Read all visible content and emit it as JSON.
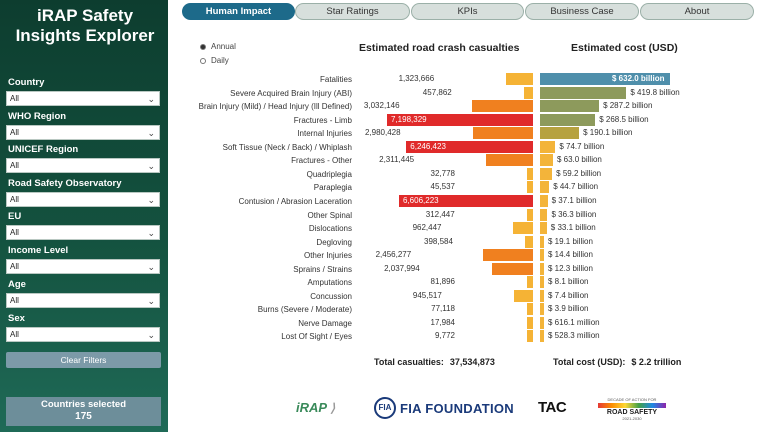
{
  "app": {
    "title": "iRAP Safety Insights Explorer"
  },
  "tabs": [
    {
      "label": "Human Impact",
      "active": true
    },
    {
      "label": "Star Ratings",
      "active": false
    },
    {
      "label": "KPIs",
      "active": false
    },
    {
      "label": "Business Case",
      "active": false
    },
    {
      "label": "About",
      "active": false
    }
  ],
  "filters": [
    {
      "label": "Country",
      "value": "All"
    },
    {
      "label": "WHO Region",
      "value": "All"
    },
    {
      "label": "UNICEF Region",
      "value": "All"
    },
    {
      "label": "Road Safety Observatory",
      "value": "All"
    },
    {
      "label": "EU",
      "value": "All"
    },
    {
      "label": "Income Level",
      "value": "All"
    },
    {
      "label": "Age",
      "value": "All"
    },
    {
      "label": "Sex",
      "value": "All"
    }
  ],
  "clear_filters_label": "Clear Filters",
  "countries_selected": {
    "label": "Countries selected",
    "value": "175"
  },
  "period_options": [
    {
      "label": "Annual",
      "selected": true
    },
    {
      "label": "Daily",
      "selected": false
    }
  ],
  "headers": {
    "casualties": "Estimated road crash casualties",
    "cost": "Estimated cost (USD)"
  },
  "rows": [
    {
      "injury": "Fatalities",
      "casualties": 1323666,
      "casualties_label": "1,323,666",
      "cost": 632.0,
      "cost_label": "$ 632.0 billion"
    },
    {
      "injury": "Severe Acquired Brain Injury (ABI)",
      "casualties": 457862,
      "casualties_label": "457,862",
      "cost": 419.8,
      "cost_label": "$ 419.8 billion"
    },
    {
      "injury": "Brain Injury (Mild) / Head Injury (Ill Defined)",
      "casualties": 3032146,
      "casualties_label": "3,032,146",
      "cost": 287.2,
      "cost_label": "$ 287.2 billion"
    },
    {
      "injury": "Fractures - Limb",
      "casualties": 7198329,
      "casualties_label": "7,198,329",
      "cost": 268.5,
      "cost_label": "$ 268.5 billion"
    },
    {
      "injury": "Internal Injuries",
      "casualties": 2980428,
      "casualties_label": "2,980,428",
      "cost": 190.1,
      "cost_label": "$ 190.1 billion"
    },
    {
      "injury": "Soft Tissue (Neck / Back) / Whiplash",
      "casualties": 6246423,
      "casualties_label": "6,246,423",
      "cost": 74.7,
      "cost_label": "$ 74.7 billion"
    },
    {
      "injury": "Fractures - Other",
      "casualties": 2311445,
      "casualties_label": "2,311,445",
      "cost": 63.0,
      "cost_label": "$ 63.0 billion"
    },
    {
      "injury": "Quadriplegia",
      "casualties": 32778,
      "casualties_label": "32,778",
      "cost": 59.2,
      "cost_label": "$ 59.2 billion"
    },
    {
      "injury": "Paraplegia",
      "casualties": 45537,
      "casualties_label": "45,537",
      "cost": 44.7,
      "cost_label": "$ 44.7 billion"
    },
    {
      "injury": "Contusion / Abrasion Laceration",
      "casualties": 6606223,
      "casualties_label": "6,606,223",
      "cost": 37.1,
      "cost_label": "$ 37.1 billion"
    },
    {
      "injury": "Other Spinal",
      "casualties": 312447,
      "casualties_label": "312,447",
      "cost": 36.3,
      "cost_label": "$ 36.3 billion"
    },
    {
      "injury": "Dislocations",
      "casualties": 962447,
      "casualties_label": "962,447",
      "cost": 33.1,
      "cost_label": "$ 33.1 billion"
    },
    {
      "injury": "Degloving",
      "casualties": 398584,
      "casualties_label": "398,584",
      "cost": 19.1,
      "cost_label": "$ 19.1 billion"
    },
    {
      "injury": "Other Injuries",
      "casualties": 2456277,
      "casualties_label": "2,456,277",
      "cost": 14.4,
      "cost_label": "$ 14.4 billion"
    },
    {
      "injury": "Sprains / Strains",
      "casualties": 2037994,
      "casualties_label": "2,037,994",
      "cost": 12.3,
      "cost_label": "$ 12.3 billion"
    },
    {
      "injury": "Amputations",
      "casualties": 81896,
      "casualties_label": "81,896",
      "cost": 8.1,
      "cost_label": "$ 8.1 billion"
    },
    {
      "injury": "Concussion",
      "casualties": 945517,
      "casualties_label": "945,517",
      "cost": 7.4,
      "cost_label": "$ 7.4 billion"
    },
    {
      "injury": "Burns (Severe / Moderate)",
      "casualties": 77118,
      "casualties_label": "77,118",
      "cost": 3.9,
      "cost_label": "$ 3.9 billion"
    },
    {
      "injury": "Nerve Damage",
      "casualties": 17984,
      "casualties_label": "17,984",
      "cost": 0.616,
      "cost_label": "$ 616.1 million"
    },
    {
      "injury": "Lost Of Sight / Eyes",
      "casualties": 9772,
      "casualties_label": "9,772",
      "cost": 0.528,
      "cost_label": "$ 528.3 million"
    }
  ],
  "totals": {
    "casualties_label": "Total casualties:",
    "casualties_value": "37,534,873",
    "cost_label": "Total cost (USD):",
    "cost_value": "$ 2.2 trillion"
  },
  "logos": {
    "irap": "iRAP",
    "fia": "FIA FOUNDATION",
    "tac": "TAC",
    "decade_top": "DECADE OF ACTION FOR",
    "decade_main": "ROAD SAFETY",
    "decade_years": "2021-2030"
  },
  "colors": {
    "sidebar": "#14523f",
    "tab_active": "#1d6a8a",
    "cas_low": "#f5b335",
    "cas_mid": "#f0801f",
    "cas_high": "#e02a2a",
    "cost_top": "#4f8fab",
    "cost_high": "#8d9a5c",
    "cost_mid": "#b6a240",
    "cost_low": "#f3b43a"
  }
}
